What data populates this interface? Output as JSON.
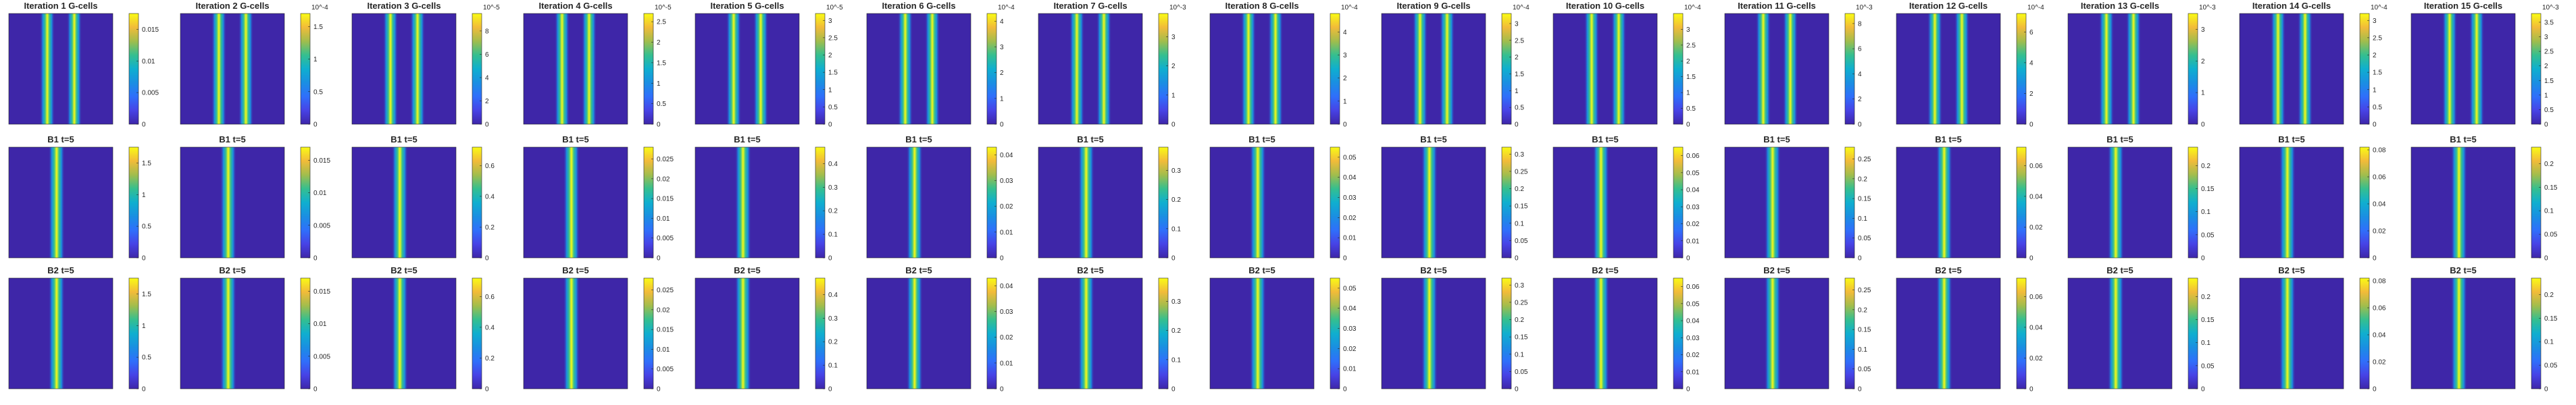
{
  "figure": {
    "colormap": "parula",
    "colors": {
      "low": "#3e26a8",
      "high": "#f9fb15",
      "background": "#ffffff",
      "frame": "#262626"
    }
  },
  "chart_data": [
    {
      "type": "heatmap",
      "row": "G-cells",
      "iteration": 1,
      "title": "Iteration 1 G-cells",
      "stripes": 2,
      "colorbar": {
        "ticks": [
          "0",
          "0.005",
          "0.01",
          "0.015"
        ],
        "multiplier": "",
        "max": 0.0175
      }
    },
    {
      "type": "heatmap",
      "row": "G-cells",
      "iteration": 2,
      "title": "Iteration 2 G-cells",
      "stripes": 2,
      "colorbar": {
        "ticks": [
          "0",
          "0.5",
          "1",
          "1.5"
        ],
        "multiplier": "10^-4",
        "max": 1.7
      }
    },
    {
      "type": "heatmap",
      "row": "G-cells",
      "iteration": 3,
      "title": "Iteration 3 G-cells",
      "stripes": 2,
      "colorbar": {
        "ticks": [
          "0",
          "2",
          "4",
          "6",
          "8"
        ],
        "multiplier": "10^-5",
        "max": 9.5
      }
    },
    {
      "type": "heatmap",
      "row": "G-cells",
      "iteration": 4,
      "title": "Iteration 4 G-cells",
      "stripes": 2,
      "colorbar": {
        "ticks": [
          "0",
          "0.5",
          "1",
          "1.5",
          "2",
          "2.5"
        ],
        "multiplier": "10^-5",
        "max": 2.7
      }
    },
    {
      "type": "heatmap",
      "row": "G-cells",
      "iteration": 5,
      "title": "Iteration 5 G-cells",
      "stripes": 2,
      "colorbar": {
        "ticks": [
          "0",
          "0.5",
          "1",
          "1.5",
          "2",
          "2.5",
          "3"
        ],
        "multiplier": "10^-5",
        "max": 3.2
      }
    },
    {
      "type": "heatmap",
      "row": "G-cells",
      "iteration": 6,
      "title": "Iteration 6 G-cells",
      "stripes": 2,
      "colorbar": {
        "ticks": [
          "0",
          "1",
          "2",
          "3",
          "4"
        ],
        "multiplier": "10^-4",
        "max": 4.3
      }
    },
    {
      "type": "heatmap",
      "row": "G-cells",
      "iteration": 7,
      "title": "Iteration 7 G-cells",
      "stripes": 2,
      "colorbar": {
        "ticks": [
          "0",
          "1",
          "2",
          "3"
        ],
        "multiplier": "10^-3",
        "max": 3.8
      }
    },
    {
      "type": "heatmap",
      "row": "G-cells",
      "iteration": 8,
      "title": "Iteration 8 G-cells",
      "stripes": 2,
      "colorbar": {
        "ticks": [
          "0",
          "1",
          "2",
          "3",
          "4"
        ],
        "multiplier": "10^-4",
        "max": 4.8
      }
    },
    {
      "type": "heatmap",
      "row": "G-cells",
      "iteration": 9,
      "title": "Iteration 9 G-cells",
      "stripes": 2,
      "colorbar": {
        "ticks": [
          "0",
          "0.5",
          "1",
          "1.5",
          "2",
          "2.5",
          "3"
        ],
        "multiplier": "10^-4",
        "max": 3.3
      }
    },
    {
      "type": "heatmap",
      "row": "G-cells",
      "iteration": 10,
      "title": "Iteration 10 G-cells",
      "stripes": 2,
      "colorbar": {
        "ticks": [
          "0",
          "0.5",
          "1",
          "1.5",
          "2",
          "2.5",
          "3"
        ],
        "multiplier": "10^-4",
        "max": 3.5
      }
    },
    {
      "type": "heatmap",
      "row": "G-cells",
      "iteration": 11,
      "title": "Iteration 11 G-cells",
      "stripes": 2,
      "colorbar": {
        "ticks": [
          "0",
          "2",
          "4",
          "6",
          "8"
        ],
        "multiplier": "10^-3",
        "max": 8.8
      }
    },
    {
      "type": "heatmap",
      "row": "G-cells",
      "iteration": 12,
      "title": "Iteration 12 G-cells",
      "stripes": 2,
      "colorbar": {
        "ticks": [
          "0",
          "2",
          "4",
          "6"
        ],
        "multiplier": "10^-4",
        "max": 7.2
      }
    },
    {
      "type": "heatmap",
      "row": "G-cells",
      "iteration": 13,
      "title": "Iteration 13 G-cells",
      "stripes": 2,
      "colorbar": {
        "ticks": [
          "0",
          "1",
          "2",
          "3"
        ],
        "multiplier": "10^-3",
        "max": 3.5
      }
    },
    {
      "type": "heatmap",
      "row": "G-cells",
      "iteration": 14,
      "title": "Iteration 14 G-cells",
      "stripes": 2,
      "colorbar": {
        "ticks": [
          "0",
          "0.5",
          "1",
          "1.5",
          "2",
          "2.5",
          "3"
        ],
        "multiplier": "10^-4",
        "max": 3.2
      }
    },
    {
      "type": "heatmap",
      "row": "G-cells",
      "iteration": 15,
      "title": "Iteration 15 G-cells",
      "stripes": 2,
      "colorbar": {
        "ticks": [
          "0",
          "0.5",
          "1",
          "1.5",
          "2",
          "2.5",
          "3",
          "3.5"
        ],
        "multiplier": "10^-3",
        "max": 3.8
      }
    },
    {
      "type": "heatmap",
      "row": "B1",
      "iteration": 1,
      "title": "B1 t=5",
      "stripes": 1,
      "colorbar": {
        "ticks": [
          "0",
          "0.5",
          "1",
          "1.5"
        ],
        "multiplier": "",
        "max": 1.75
      }
    },
    {
      "type": "heatmap",
      "row": "B1",
      "iteration": 2,
      "title": "B1 t=5",
      "stripes": 1,
      "colorbar": {
        "ticks": [
          "0",
          "0.005",
          "0.01",
          "0.015"
        ],
        "multiplier": "",
        "max": 0.017
      }
    },
    {
      "type": "heatmap",
      "row": "B1",
      "iteration": 3,
      "title": "B1 t=5",
      "stripes": 1,
      "colorbar": {
        "ticks": [
          "0",
          "0.2",
          "0.4",
          "0.6"
        ],
        "multiplier": "",
        "max": 0.72
      }
    },
    {
      "type": "heatmap",
      "row": "B1",
      "iteration": 4,
      "title": "B1 t=5",
      "stripes": 1,
      "colorbar": {
        "ticks": [
          "0",
          "0.005",
          "0.01",
          "0.015",
          "0.02",
          "0.025"
        ],
        "multiplier": "",
        "max": 0.028
      }
    },
    {
      "type": "heatmap",
      "row": "B1",
      "iteration": 5,
      "title": "B1 t=5",
      "stripes": 1,
      "colorbar": {
        "ticks": [
          "0",
          "0.1",
          "0.2",
          "0.3",
          "0.4"
        ],
        "multiplier": "",
        "max": 0.47
      }
    },
    {
      "type": "heatmap",
      "row": "B1",
      "iteration": 6,
      "title": "B1 t=5",
      "stripes": 1,
      "colorbar": {
        "ticks": [
          "0",
          "0.01",
          "0.02",
          "0.03",
          "0.04"
        ],
        "multiplier": "",
        "max": 0.043
      }
    },
    {
      "type": "heatmap",
      "row": "B1",
      "iteration": 7,
      "title": "B1 t=5",
      "stripes": 1,
      "colorbar": {
        "ticks": [
          "0",
          "0.1",
          "0.2",
          "0.3"
        ],
        "multiplier": "",
        "max": 0.38
      }
    },
    {
      "type": "heatmap",
      "row": "B1",
      "iteration": 8,
      "title": "B1 t=5",
      "stripes": 1,
      "colorbar": {
        "ticks": [
          "0",
          "0.01",
          "0.02",
          "0.03",
          "0.04",
          "0.05"
        ],
        "multiplier": "",
        "max": 0.055
      }
    },
    {
      "type": "heatmap",
      "row": "B1",
      "iteration": 9,
      "title": "B1 t=5",
      "stripes": 1,
      "colorbar": {
        "ticks": [
          "0",
          "0.05",
          "0.1",
          "0.15",
          "0.2",
          "0.25",
          "0.3"
        ],
        "multiplier": "",
        "max": 0.32
      }
    },
    {
      "type": "heatmap",
      "row": "B1",
      "iteration": 10,
      "title": "B1 t=5",
      "stripes": 1,
      "colorbar": {
        "ticks": [
          "0",
          "0.01",
          "0.02",
          "0.03",
          "0.04",
          "0.05",
          "0.06"
        ],
        "multiplier": "",
        "max": 0.065
      }
    },
    {
      "type": "heatmap",
      "row": "B1",
      "iteration": 11,
      "title": "B1 t=5",
      "stripes": 1,
      "colorbar": {
        "ticks": [
          "0",
          "0.05",
          "0.1",
          "0.15",
          "0.2",
          "0.25"
        ],
        "multiplier": "",
        "max": 0.28
      }
    },
    {
      "type": "heatmap",
      "row": "B1",
      "iteration": 12,
      "title": "B1 t=5",
      "stripes": 1,
      "colorbar": {
        "ticks": [
          "0",
          "0.02",
          "0.04",
          "0.06"
        ],
        "multiplier": "",
        "max": 0.072
      }
    },
    {
      "type": "heatmap",
      "row": "B1",
      "iteration": 13,
      "title": "B1 t=5",
      "stripes": 1,
      "colorbar": {
        "ticks": [
          "0",
          "0.05",
          "0.1",
          "0.15",
          "0.2"
        ],
        "multiplier": "",
        "max": 0.24
      }
    },
    {
      "type": "heatmap",
      "row": "B1",
      "iteration": 14,
      "title": "B1 t=5",
      "stripes": 1,
      "colorbar": {
        "ticks": [
          "0",
          "0.02",
          "0.04",
          "0.06",
          "0.08"
        ],
        "multiplier": "",
        "max": 0.082
      }
    },
    {
      "type": "heatmap",
      "row": "B1",
      "iteration": 15,
      "title": "B1 t=5",
      "stripes": 1,
      "colorbar": {
        "ticks": [
          "0",
          "0.05",
          "0.1",
          "0.15",
          "0.2"
        ],
        "multiplier": "",
        "max": 0.235
      }
    },
    {
      "type": "heatmap",
      "row": "B2",
      "iteration": 1,
      "title": "B2 t=5",
      "stripes": 1,
      "colorbar": {
        "ticks": [
          "0",
          "0.5",
          "1",
          "1.5"
        ],
        "multiplier": "",
        "max": 1.75
      }
    },
    {
      "type": "heatmap",
      "row": "B2",
      "iteration": 2,
      "title": "B2 t=5",
      "stripes": 1,
      "colorbar": {
        "ticks": [
          "0",
          "0.005",
          "0.01",
          "0.015"
        ],
        "multiplier": "",
        "max": 0.017
      }
    },
    {
      "type": "heatmap",
      "row": "B2",
      "iteration": 3,
      "title": "B2 t=5",
      "stripes": 1,
      "colorbar": {
        "ticks": [
          "0",
          "0.2",
          "0.4",
          "0.6"
        ],
        "multiplier": "",
        "max": 0.72
      }
    },
    {
      "type": "heatmap",
      "row": "B2",
      "iteration": 4,
      "title": "B2 t=5",
      "stripes": 1,
      "colorbar": {
        "ticks": [
          "0",
          "0.005",
          "0.01",
          "0.015",
          "0.02",
          "0.025"
        ],
        "multiplier": "",
        "max": 0.028
      }
    },
    {
      "type": "heatmap",
      "row": "B2",
      "iteration": 5,
      "title": "B2 t=5",
      "stripes": 1,
      "colorbar": {
        "ticks": [
          "0",
          "0.1",
          "0.2",
          "0.3",
          "0.4"
        ],
        "multiplier": "",
        "max": 0.47
      }
    },
    {
      "type": "heatmap",
      "row": "B2",
      "iteration": 6,
      "title": "B2 t=5",
      "stripes": 1,
      "colorbar": {
        "ticks": [
          "0",
          "0.01",
          "0.02",
          "0.03",
          "0.04"
        ],
        "multiplier": "",
        "max": 0.043
      }
    },
    {
      "type": "heatmap",
      "row": "B2",
      "iteration": 7,
      "title": "B2 t=5",
      "stripes": 1,
      "colorbar": {
        "ticks": [
          "0",
          "0.1",
          "0.2",
          "0.3"
        ],
        "multiplier": "",
        "max": 0.38
      }
    },
    {
      "type": "heatmap",
      "row": "B2",
      "iteration": 8,
      "title": "B2 t=5",
      "stripes": 1,
      "colorbar": {
        "ticks": [
          "0",
          "0.01",
          "0.02",
          "0.03",
          "0.04",
          "0.05"
        ],
        "multiplier": "",
        "max": 0.055
      }
    },
    {
      "type": "heatmap",
      "row": "B2",
      "iteration": 9,
      "title": "B2 t=5",
      "stripes": 1,
      "colorbar": {
        "ticks": [
          "0",
          "0.05",
          "0.1",
          "0.15",
          "0.2",
          "0.25",
          "0.3"
        ],
        "multiplier": "",
        "max": 0.32
      }
    },
    {
      "type": "heatmap",
      "row": "B2",
      "iteration": 10,
      "title": "B2 t=5",
      "stripes": 1,
      "colorbar": {
        "ticks": [
          "0",
          "0.01",
          "0.02",
          "0.03",
          "0.04",
          "0.05",
          "0.06"
        ],
        "multiplier": "",
        "max": 0.065
      }
    },
    {
      "type": "heatmap",
      "row": "B2",
      "iteration": 11,
      "title": "B2 t=5",
      "stripes": 1,
      "colorbar": {
        "ticks": [
          "0",
          "0.05",
          "0.1",
          "0.15",
          "0.2",
          "0.25"
        ],
        "multiplier": "",
        "max": 0.28
      }
    },
    {
      "type": "heatmap",
      "row": "B2",
      "iteration": 12,
      "title": "B2 t=5",
      "stripes": 1,
      "colorbar": {
        "ticks": [
          "0",
          "0.02",
          "0.04",
          "0.06"
        ],
        "multiplier": "",
        "max": 0.072
      }
    },
    {
      "type": "heatmap",
      "row": "B2",
      "iteration": 13,
      "title": "B2 t=5",
      "stripes": 1,
      "colorbar": {
        "ticks": [
          "0",
          "0.05",
          "0.1",
          "0.15",
          "0.2"
        ],
        "multiplier": "",
        "max": 0.24
      }
    },
    {
      "type": "heatmap",
      "row": "B2",
      "iteration": 14,
      "title": "B2 t=5",
      "stripes": 1,
      "colorbar": {
        "ticks": [
          "0",
          "0.02",
          "0.04",
          "0.06",
          "0.08"
        ],
        "multiplier": "",
        "max": 0.082
      }
    },
    {
      "type": "heatmap",
      "row": "B2",
      "iteration": 15,
      "title": "B2 t=5",
      "stripes": 1,
      "colorbar": {
        "ticks": [
          "0",
          "0.05",
          "0.1",
          "0.15",
          "0.2"
        ],
        "multiplier": "",
        "max": 0.235
      }
    }
  ]
}
